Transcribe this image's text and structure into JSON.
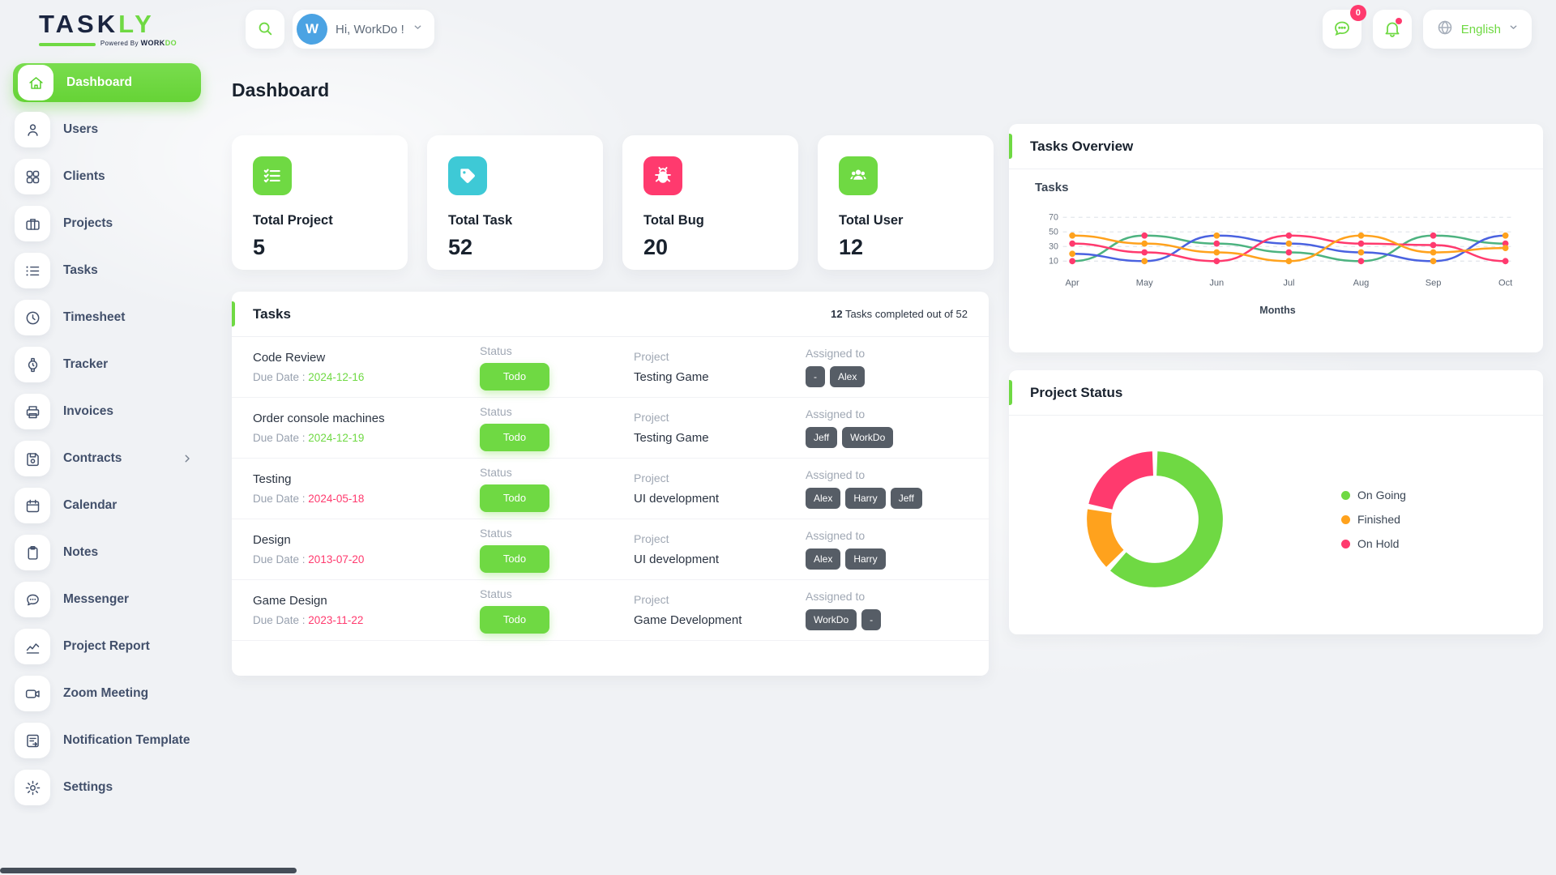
{
  "brand": {
    "part1": "TASK",
    "part2": "LY",
    "powered_prefix": "Powered By ",
    "powered_brand1": "WORK",
    "powered_brand2": "DO"
  },
  "topbar": {
    "greeting": "Hi, WorkDo !",
    "avatar_letter": "W",
    "messages_badge": "0",
    "language": "English"
  },
  "page": {
    "title": "Dashboard"
  },
  "sidebar": {
    "items": [
      {
        "label": "Dashboard",
        "icon": "home",
        "active": true
      },
      {
        "label": "Users",
        "icon": "user",
        "active": false
      },
      {
        "label": "Clients",
        "icon": "clients",
        "active": false
      },
      {
        "label": "Projects",
        "icon": "projects",
        "active": false
      },
      {
        "label": "Tasks",
        "icon": "tasks",
        "active": false
      },
      {
        "label": "Timesheet",
        "icon": "clock",
        "active": false
      },
      {
        "label": "Tracker",
        "icon": "watch",
        "active": false
      },
      {
        "label": "Invoices",
        "icon": "printer",
        "active": false
      },
      {
        "label": "Contracts",
        "icon": "floppy",
        "active": false,
        "chevron": true
      },
      {
        "label": "Calendar",
        "icon": "calendar",
        "active": false
      },
      {
        "label": "Notes",
        "icon": "clipboard",
        "active": false
      },
      {
        "label": "Messenger",
        "icon": "chat",
        "active": false
      },
      {
        "label": "Project Report",
        "icon": "report",
        "active": false
      },
      {
        "label": "Zoom Meeting",
        "icon": "video",
        "active": false
      },
      {
        "label": "Notification Template",
        "icon": "template",
        "active": false
      },
      {
        "label": "Settings",
        "icon": "gear",
        "active": false
      }
    ]
  },
  "stats": [
    {
      "label": "Total Project",
      "value": "5",
      "icon": "checklist",
      "color": "#6fd943"
    },
    {
      "label": "Total Task",
      "value": "52",
      "icon": "tag",
      "color": "#3ec9d6"
    },
    {
      "label": "Total Bug",
      "value": "20",
      "icon": "bug",
      "color": "#ff3a6e"
    },
    {
      "label": "Total User",
      "value": "12",
      "icon": "group",
      "color": "#6fd943"
    }
  ],
  "tasks_panel": {
    "title": "Tasks",
    "summary_bold": "12",
    "summary_rest": " Tasks completed out of 52",
    "due_prefix": "Due Date : ",
    "columns": {
      "status": "Status",
      "project": "Project",
      "assigned": "Assigned to"
    },
    "rows": [
      {
        "name": "Code Review",
        "due": "2024-12-16",
        "due_color": "#6fd943",
        "status": "Todo",
        "project": "Testing Game",
        "assignees": [
          "-",
          "Alex"
        ]
      },
      {
        "name": "Order console machines",
        "due": "2024-12-19",
        "due_color": "#6fd943",
        "status": "Todo",
        "project": "Testing Game",
        "assignees": [
          "Jeff",
          "WorkDo"
        ]
      },
      {
        "name": "Testing",
        "due": "2024-05-18",
        "due_color": "#ff3a6e",
        "status": "Todo",
        "project": "UI development",
        "assignees": [
          "Alex",
          "Harry",
          "Jeff"
        ]
      },
      {
        "name": "Design",
        "due": "2013-07-20",
        "due_color": "#ff3a6e",
        "status": "Todo",
        "project": "UI development",
        "assignees": [
          "Alex",
          "Harry"
        ]
      },
      {
        "name": "Game Design",
        "due": "2023-11-22",
        "due_color": "#ff3a6e",
        "status": "Todo",
        "project": "Game Development",
        "assignees": [
          "WorkDo",
          "-"
        ]
      }
    ]
  },
  "tasks_overview": {
    "title": "Tasks Overview",
    "ylabel": "Tasks",
    "xlabel": "Months"
  },
  "project_status": {
    "title": "Project Status"
  },
  "chart_data": [
    {
      "type": "line",
      "title": "Tasks Overview",
      "xlabel": "Months",
      "ylabel": "Tasks",
      "x": [
        "Apr",
        "May",
        "Jun",
        "Jul",
        "Aug",
        "Sep",
        "Oct"
      ],
      "yticks": [
        10,
        30,
        50,
        70
      ],
      "ylim": [
        0,
        80
      ],
      "grid": "dashed-horizontal",
      "legend_position": "none",
      "series": [
        {
          "name": "series-green",
          "color": "#4db380",
          "marker_color": "#ff3a6e",
          "values": [
            10,
            45,
            34,
            22,
            10,
            45,
            34
          ]
        },
        {
          "name": "series-blue",
          "color": "#4a62e0",
          "marker_color": "#ffa21d",
          "values": [
            20,
            10,
            45,
            34,
            22,
            10,
            45
          ]
        },
        {
          "name": "series-pink",
          "color": "#ff3a6e",
          "marker_color": "#ff3a6e",
          "values": [
            34,
            22,
            10,
            45,
            34,
            32,
            10
          ]
        },
        {
          "name": "series-orange",
          "color": "#ffa21d",
          "marker_color": "#ffa21d",
          "values": [
            45,
            34,
            22,
            10,
            45,
            22,
            28
          ]
        }
      ]
    },
    {
      "type": "pie",
      "donut": true,
      "title": "Project Status",
      "legend_position": "right",
      "slices": [
        {
          "label": "On Going",
          "value": 62,
          "color": "#6fd943"
        },
        {
          "label": "Finished",
          "value": 16,
          "color": "#ffa21d"
        },
        {
          "label": "On Hold",
          "value": 22,
          "color": "#ff3a6e"
        }
      ]
    }
  ]
}
